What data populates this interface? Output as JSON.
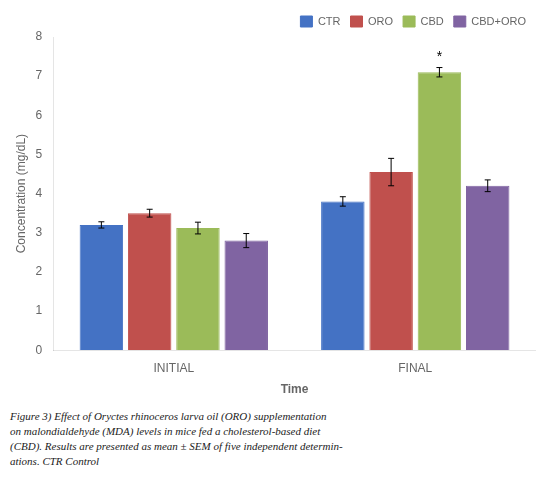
{
  "chart_data": {
    "type": "bar",
    "categories": [
      "INITIAL",
      "FINAL"
    ],
    "series": [
      {
        "name": "CTR",
        "color": "#4472C4",
        "values": [
          3.2,
          3.8
        ],
        "errors": [
          0.08,
          0.12
        ]
      },
      {
        "name": "ORO",
        "color": "#C0504D",
        "values": [
          3.5,
          4.55
        ],
        "errors": [
          0.1,
          0.35
        ]
      },
      {
        "name": "CBD",
        "color": "#9BBB59",
        "values": [
          3.12,
          7.1
        ],
        "errors": [
          0.15,
          0.12
        ]
      },
      {
        "name": "CBD+ORO",
        "color": "#8064A2",
        "values": [
          2.8,
          4.2
        ],
        "errors": [
          0.18,
          0.15
        ]
      }
    ],
    "xlabel": "Time",
    "ylabel": "Concentration (mg/dL)",
    "ylim": [
      0,
      8
    ],
    "yticks": [
      0,
      1,
      2,
      3,
      4,
      5,
      6,
      7,
      8
    ],
    "grid": false,
    "legend": "upper right",
    "annotations": [
      {
        "text": "*",
        "series": "CBD",
        "category": "FINAL"
      }
    ],
    "caption": "Figure 3) Effect of Oryctes rhinoceros larva oil (ORO) supplementation\non malondialdehyde (MDA) levels in mice fed a cholesterol-based diet\n(CBD). Results are presented as mean ± SEM of five independent determin-\nations. CTR Control"
  }
}
